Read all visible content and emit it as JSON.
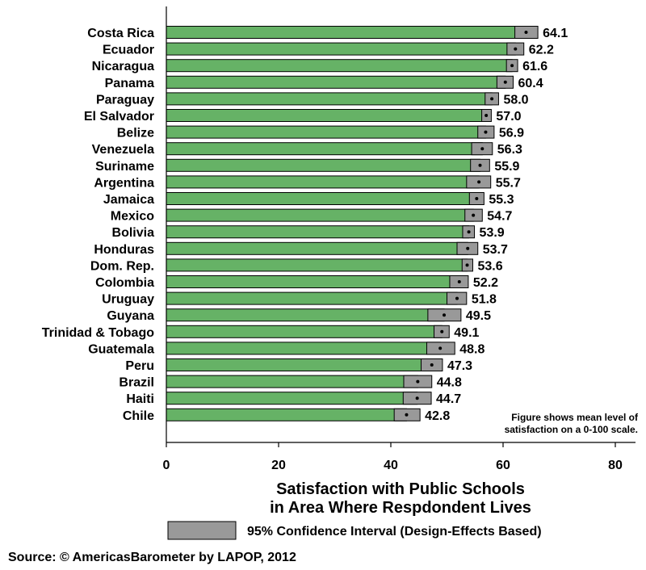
{
  "chart_data": {
    "type": "bar",
    "orientation": "horizontal",
    "categories": [
      "Costa Rica",
      "Ecuador",
      "Nicaragua",
      "Panama",
      "Paraguay",
      "El Salvador",
      "Belize",
      "Venezuela",
      "Suriname",
      "Argentina",
      "Jamaica",
      "Mexico",
      "Bolivia",
      "Honduras",
      "Dom. Rep.",
      "Colombia",
      "Uruguay",
      "Guyana",
      "Trinidad & Tobago",
      "Guatemala",
      "Peru",
      "Brazil",
      "Haiti",
      "Chile"
    ],
    "values": [
      64.1,
      62.2,
      61.6,
      60.4,
      58.0,
      57.0,
      56.9,
      56.3,
      55.9,
      55.7,
      55.3,
      54.7,
      53.9,
      53.7,
      53.6,
      52.2,
      51.8,
      49.5,
      49.1,
      48.8,
      47.3,
      44.8,
      44.7,
      42.8
    ],
    "value_labels": [
      "64.1",
      "62.2",
      "61.6",
      "60.4",
      "58.0",
      "57.0",
      "56.9",
      "56.3",
      "55.9",
      "55.7",
      "55.3",
      "54.7",
      "53.9",
      "53.7",
      "53.6",
      "52.2",
      "51.8",
      "49.5",
      "49.1",
      "48.8",
      "47.3",
      "44.8",
      "44.7",
      "42.8"
    ],
    "ci_low": [
      62.1,
      60.7,
      60.6,
      58.9,
      56.8,
      56.2,
      55.5,
      54.4,
      54.2,
      53.5,
      54.0,
      53.2,
      52.8,
      51.8,
      52.7,
      50.5,
      50.0,
      46.6,
      47.7,
      46.4,
      45.4,
      42.3,
      42.2,
      40.6
    ],
    "ci_high": [
      66.2,
      63.7,
      62.6,
      61.8,
      59.2,
      57.9,
      58.4,
      58.1,
      57.6,
      57.8,
      56.6,
      56.3,
      54.9,
      55.5,
      54.6,
      53.8,
      53.5,
      52.5,
      50.4,
      51.4,
      49.2,
      47.3,
      47.2,
      45.2
    ],
    "xlim": [
      0,
      83
    ],
    "xticks": [
      "0",
      "20",
      "40",
      "60",
      "80"
    ],
    "xlabel_line1": "Satisfaction with Public Schools",
    "xlabel_line2": "in Area Where Respdondent Lives",
    "legend_label": "95% Confidence Interval (Design-Effects Based)",
    "note_line1": "Figure shows mean level of",
    "note_line2": "satisfaction on a 0-100 scale.",
    "source": "Source: © AmericasBarometer by LAPOP, 2012",
    "colors": {
      "bar": "#66b266",
      "ci": "#999999",
      "outline": "#000000"
    }
  }
}
